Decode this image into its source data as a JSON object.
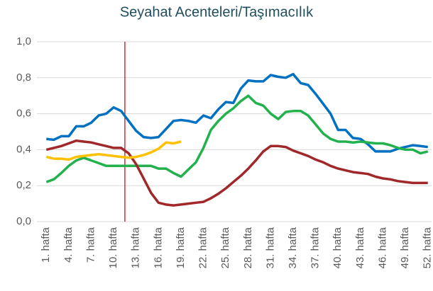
{
  "chart_data": {
    "type": "line",
    "title": "Seyahat Acenteleri/Taşımacılık",
    "categories": [
      "1. hafta",
      null,
      null,
      "4. hafta",
      null,
      null,
      "7. hafta",
      null,
      null,
      "10. hafta",
      null,
      null,
      "13. hafta",
      null,
      null,
      "16. hafta",
      null,
      null,
      "19. hafta",
      null,
      null,
      "22. hafta",
      null,
      null,
      "25. hafta",
      null,
      null,
      "28. hafta",
      null,
      null,
      "31. hafta",
      null,
      null,
      "34. hafta",
      null,
      null,
      "37. hafta",
      null,
      null,
      "40. hafta",
      null,
      null,
      "43. hafta",
      null,
      null,
      "46. hafta",
      null,
      null,
      "49. hafta",
      null,
      null,
      "52. hafta"
    ],
    "series": [
      {
        "color": "#0070c0",
        "values": [
          0.46,
          0.455,
          0.475,
          0.475,
          0.53,
          0.53,
          0.55,
          0.59,
          0.6,
          0.635,
          0.615,
          0.56,
          0.505,
          0.47,
          0.465,
          0.47,
          0.515,
          0.56,
          0.565,
          0.56,
          0.55,
          0.59,
          0.575,
          0.625,
          0.665,
          0.66,
          0.74,
          0.785,
          0.78,
          0.78,
          0.815,
          0.805,
          0.8,
          0.82,
          0.77,
          0.76,
          0.71,
          0.655,
          0.6,
          0.51,
          0.51,
          0.465,
          0.46,
          0.43,
          0.39,
          0.39,
          0.39,
          0.405,
          0.415,
          0.425,
          0.42,
          0.415
        ]
      },
      {
        "color": "#22b14c",
        "values": [
          0.22,
          0.235,
          0.27,
          0.31,
          0.34,
          0.355,
          0.34,
          0.325,
          0.31,
          0.31,
          0.31,
          0.31,
          0.31,
          0.31,
          0.31,
          0.295,
          0.295,
          0.27,
          0.25,
          0.29,
          0.33,
          0.41,
          0.51,
          0.56,
          0.6,
          0.63,
          0.67,
          0.7,
          0.66,
          0.645,
          0.6,
          0.57,
          0.61,
          0.615,
          0.615,
          0.59,
          0.54,
          0.49,
          0.46,
          0.445,
          0.445,
          0.44,
          0.445,
          0.44,
          0.435,
          0.435,
          0.425,
          0.41,
          0.4,
          0.4,
          0.38,
          0.39
        ]
      },
      {
        "color": "#a0282a",
        "values": [
          0.4,
          0.41,
          0.42,
          0.435,
          0.45,
          0.445,
          0.44,
          0.43,
          0.42,
          0.41,
          0.41,
          0.38,
          0.32,
          0.24,
          0.16,
          0.105,
          0.095,
          0.09,
          0.095,
          0.1,
          0.105,
          0.11,
          0.13,
          0.155,
          0.185,
          0.22,
          0.255,
          0.295,
          0.34,
          0.39,
          0.42,
          0.42,
          0.415,
          0.395,
          0.38,
          0.365,
          0.345,
          0.33,
          0.31,
          0.295,
          0.285,
          0.275,
          0.27,
          0.265,
          0.25,
          0.24,
          0.235,
          0.225,
          0.22,
          0.215,
          0.215,
          0.215
        ]
      },
      {
        "color": "#ffc000",
        "values": [
          0.36,
          0.35,
          0.35,
          0.345,
          0.36,
          0.365,
          0.37,
          0.375,
          0.37,
          0.365,
          0.36,
          0.355,
          0.36,
          0.37,
          0.385,
          0.405,
          0.44,
          0.435,
          0.445,
          null,
          null,
          null,
          null,
          null,
          null,
          null,
          null,
          null,
          null,
          null,
          null,
          null,
          null,
          null,
          null,
          null,
          null,
          null,
          null,
          null,
          null,
          null,
          null,
          null,
          null,
          null,
          null,
          null,
          null,
          null,
          null,
          null
        ]
      }
    ],
    "vline": {
      "x": 11.5,
      "color": "#c00000"
    },
    "ylim": [
      0,
      1
    ],
    "yticks": [
      {
        "value": 0,
        "label": "0,0"
      },
      {
        "value": 0.2,
        "label": "0,2"
      },
      {
        "value": 0.4,
        "label": "0,4"
      },
      {
        "value": 0.6,
        "label": "0,6"
      },
      {
        "value": 0.8,
        "label": "0,8"
      },
      {
        "value": 1,
        "label": "1,0"
      }
    ],
    "grid": true
  }
}
